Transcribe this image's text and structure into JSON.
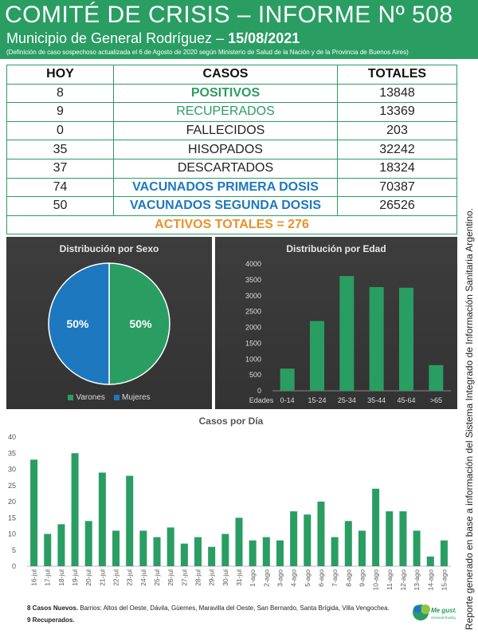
{
  "header": {
    "title": "COMITÉ DE CRISIS – INFORME Nº 508",
    "subtitle_prefix": "Municipio de General Rodríguez – ",
    "subtitle_date": "15/08/2021",
    "note": "(Definición de caso sospechoso actualizada el 6 de Agosto de 2020 según Ministerio de Salud de la Nación y de la Provincia de Buenos Aires)"
  },
  "table": {
    "headers": [
      "HOY",
      "CASOS",
      "TOTALES"
    ],
    "rows": [
      {
        "hoy": "8",
        "casos": "POSITIVOS",
        "totales": "13848"
      },
      {
        "hoy": "9",
        "casos": "RECUPERADOS",
        "totales": "13369"
      },
      {
        "hoy": "0",
        "casos": "FALLECIDOS",
        "totales": "203"
      },
      {
        "hoy": "35",
        "casos": "HISOPADOS",
        "totales": "32242"
      },
      {
        "hoy": "37",
        "casos": "DESCARTADOS",
        "totales": "18324"
      },
      {
        "hoy": "74",
        "casos": "VACUNADOS PRIMERA DOSIS",
        "totales": "70387"
      },
      {
        "hoy": "50",
        "casos": "VACUNADOS SEGUNDA DOSIS",
        "totales": "26526"
      }
    ],
    "activos": "ACTIVOS TOTALES = 276"
  },
  "side_text": "Reporte generado en base a información del Sistema Integrado de Información Sanitaria Argentino.",
  "footer": {
    "nuevos_label": "8 Casos Nuevos.",
    "nuevos_text": " Barrios: Altos del Oeste, Dávila, Güemes, Maravilla del Oeste, San Bernardo, Santa Brígida, Villa Vengochea.",
    "recuperados": "9 Recuperados."
  },
  "colors": {
    "green": "#2a9d63",
    "blue": "#1e78bf",
    "orange": "#e8922a"
  },
  "chart_data": [
    {
      "type": "pie",
      "title": "Distribución por Sexo",
      "labels": [
        "Varones",
        "Mujeres"
      ],
      "values": [
        50,
        50
      ],
      "value_labels": [
        "50%",
        "50%"
      ],
      "colors": [
        "#2a9d63",
        "#1e78bf"
      ],
      "legend": "bottom"
    },
    {
      "type": "bar",
      "title": "Distribución por Edad",
      "xlabel": "Edades",
      "categories": [
        "0-14",
        "15-24",
        "25-34",
        "35-44",
        "45-64",
        ">65"
      ],
      "values": [
        700,
        2200,
        3620,
        3270,
        3250,
        810
      ],
      "ylim": [
        0,
        4000
      ],
      "yticks": [
        0,
        500,
        1000,
        1500,
        2000,
        2500,
        3000,
        3500,
        4000
      ],
      "color": "#2a9d63"
    },
    {
      "type": "bar",
      "title": "Casos por Día",
      "categories": [
        "16-jul",
        "17-jul",
        "18-jul",
        "19-jul",
        "20-jul",
        "21-jul",
        "22-jul",
        "23-jul",
        "24-jul",
        "25-jul",
        "26-jul",
        "27-jul",
        "28-jul",
        "29-jul",
        "30-jul",
        "31-jul",
        "1-ago",
        "2-ago",
        "3-ago",
        "4-ago",
        "5-ago",
        "6-ago",
        "7-ago",
        "8-ago",
        "9-ago",
        "10-ago",
        "11-ago",
        "12-ago",
        "13-ago",
        "14-ago",
        "15-ago"
      ],
      "values": [
        33,
        10,
        13,
        35,
        14,
        29,
        11,
        28,
        11,
        9,
        12,
        7,
        9,
        6,
        10,
        15,
        8,
        9,
        8,
        17,
        16,
        20,
        9,
        14,
        11,
        24,
        17,
        17,
        11,
        3,
        8
      ],
      "ylim": [
        0,
        40
      ],
      "yticks": [
        0,
        5,
        10,
        15,
        20,
        25,
        30,
        35,
        40
      ],
      "color": "#2a9d63",
      "grid": false
    }
  ]
}
